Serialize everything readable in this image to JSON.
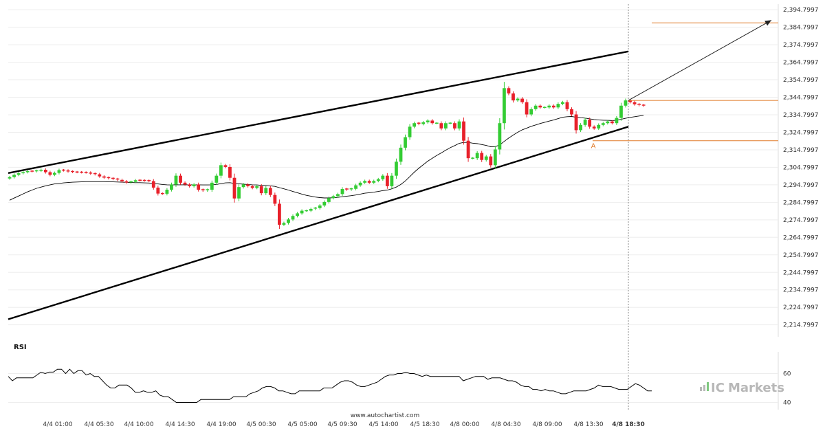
{
  "chart_data": {
    "type": "candlestick",
    "y_axis": {
      "range": [
        2208,
        2398
      ],
      "tick_labels": [
        "2,394.7997",
        "2,384.7997",
        "2,374.7997",
        "2,364.7997",
        "2,354.7997",
        "2,344.7997",
        "2,334.7997",
        "2,324.7997",
        "2,314.7997",
        "2,304.7997",
        "2,294.7997",
        "2,284.7997",
        "2,274.7997",
        "2,264.7997",
        "2,254.7997",
        "2,244.7997",
        "2,234.7997",
        "2,224.7997",
        "2,214.7997"
      ],
      "tick_values": [
        2394.7997,
        2384.7997,
        2374.7997,
        2364.7997,
        2354.7997,
        2344.7997,
        2334.7997,
        2324.7997,
        2314.7997,
        2304.7997,
        2294.7997,
        2284.7997,
        2274.7997,
        2264.7997,
        2254.7997,
        2244.7997,
        2234.7997,
        2224.7997,
        2214.7997
      ]
    },
    "x_axis": {
      "tick_labels": [
        "4/4 01:00",
        "4/4 05:30",
        "4/4 10:00",
        "4/4 14:30",
        "4/4 19:00",
        "4/5 00:30",
        "4/5 05:00",
        "4/5 09:30",
        "4/5 14:00",
        "4/5 18:30",
        "4/8 00:00",
        "4/8 04:30",
        "4/8 09:00",
        "4/8 13:30",
        "4/8 18:30"
      ],
      "highlight": "4/8 18:30"
    },
    "colors": {
      "up": "#33cc33",
      "down": "#e8202a",
      "channel": "#000000",
      "level": "#e07a28",
      "ma": "#000000"
    },
    "close": [
      2299.2,
      2300.5,
      2301.4,
      2302.0,
      2302.6,
      2302.5,
      2302.8,
      2303.4,
      2302.0,
      2300.5,
      2301.6,
      2303.2,
      2303.0,
      2302.4,
      2302.1,
      2302.0,
      2301.9,
      2301.8,
      2301.2,
      2300.8,
      2299.6,
      2298.9,
      2298.5,
      2298.1,
      2297.6,
      2296.8,
      2296.1,
      2296.5,
      2297.4,
      2297.3,
      2297.2,
      2296.9,
      2293.2,
      2289.8,
      2289.7,
      2292.0,
      2295.0,
      2300.0,
      2296.0,
      2295.0,
      2294.0,
      2295.0,
      2292.0,
      2291.5,
      2292.0,
      2296.0,
      2300.0,
      2306.0,
      2305.0,
      2298.8,
      2287.0,
      2293.5,
      2295.0,
      2294.0,
      2293.0,
      2294.0,
      2290.0,
      2293.0,
      2289.0,
      2284.0,
      2272.0,
      2273.0,
      2275.0,
      2277.0,
      2278.5,
      2280.0,
      2280.0,
      2281.0,
      2281.5,
      2283.0,
      2285.0,
      2287.2,
      2288.3,
      2289.5,
      2292.4,
      2292.0,
      2292.5,
      2294.5,
      2296.0,
      2297.0,
      2296.0,
      2297.0,
      2298.0,
      2300.0,
      2294.0,
      2300.0,
      2308.0,
      2316.0,
      2322.0,
      2328.0,
      2330.0,
      2329.5,
      2330.5,
      2331.5,
      2330.0,
      2330.0,
      2327.0,
      2330.0,
      2330.0,
      2327.0,
      2331.0,
      2320.0,
      2310.0,
      2310.0,
      2313.0,
      2309.0,
      2311.0,
      2306.0,
      2315.0,
      2330.0,
      2350.0,
      2347.0,
      2343.0,
      2344.0,
      2342.0,
      2335.0,
      2338.0,
      2340.0,
      2339.0,
      2339.0,
      2340.0,
      2339.0,
      2341.0,
      2342.0,
      2338.0,
      2335.0,
      2326.0,
      2329.0,
      2332.0,
      2328.0,
      2327.0,
      2329.0,
      2330.0,
      2331.0,
      2330.0,
      2333.0,
      2340.0,
      2343.0,
      2342.0,
      2340.8,
      2340.3,
      2340.0
    ],
    "moving_average": [
      2286,
      2287.2,
      2288.4,
      2289.6,
      2290.8,
      2291.8,
      2292.8,
      2293.5,
      2294.2,
      2294.8,
      2295.3,
      2295.6,
      2295.9,
      2296.1,
      2296.3,
      2296.4,
      2296.5,
      2296.6,
      2296.6,
      2296.6,
      2296.6,
      2296.6,
      2296.5,
      2296.5,
      2296.4,
      2296.3,
      2296.2,
      2296.1,
      2296.0,
      2296.0,
      2295.9,
      2295.8,
      2295.6,
      2295.3,
      2295.0,
      2294.8,
      2294.7,
      2294.8,
      2294.8,
      2294.8,
      2294.8,
      2294.8,
      2294.8,
      2294.7,
      2294.7,
      2294.8,
      2295.0,
      2295.5,
      2295.9,
      2296.0,
      2295.6,
      2295.4,
      2295.2,
      2295.0,
      2294.8,
      2294.7,
      2294.5,
      2294.4,
      2294.2,
      2293.9,
      2293.2,
      2292.5,
      2291.8,
      2291.0,
      2290.3,
      2289.5,
      2288.8,
      2288.3,
      2287.8,
      2287.5,
      2287.3,
      2287.3,
      2287.4,
      2287.6,
      2288.0,
      2288.3,
      2288.6,
      2289.0,
      2289.5,
      2290.0,
      2290.3,
      2290.6,
      2291.0,
      2291.5,
      2291.8,
      2292.5,
      2293.5,
      2295.0,
      2297.0,
      2299.5,
      2302.0,
      2304.2,
      2306.3,
      2308.3,
      2310.0,
      2311.6,
      2313.0,
      2314.6,
      2316.0,
      2317.2,
      2318.5,
      2319.0,
      2319.0,
      2318.6,
      2318.3,
      2317.8,
      2317.3,
      2316.5,
      2316.6,
      2317.6,
      2319.6,
      2321.5,
      2323.2,
      2324.8,
      2326.2,
      2327.2,
      2328.2,
      2329.0,
      2329.8,
      2330.5,
      2331.2,
      2331.8,
      2332.6,
      2333.4,
      2333.7,
      2333.8,
      2333.4,
      2333.1,
      2332.9,
      2332.5,
      2332.1,
      2331.8,
      2331.7,
      2331.6,
      2331.5,
      2331.7,
      2332.2,
      2332.8,
      2333.3,
      2333.7,
      2334.1,
      2334.5
    ],
    "channel": {
      "upper": {
        "start": 2301.5,
        "end": 2371.0
      },
      "lower": {
        "start": 2218.0,
        "end": 2328.0
      }
    },
    "levels": [
      {
        "name": "target",
        "value": 2387.3
      },
      {
        "name": "breakout",
        "value": 2343.0
      },
      {
        "name": "support",
        "value": 2320.0
      }
    ],
    "support_label": "A",
    "rsi": {
      "title": "RSI",
      "tick_labels": [
        "60",
        "40"
      ],
      "range": [
        35,
        75
      ],
      "values": [
        58,
        55,
        57,
        57,
        57,
        57,
        57,
        59,
        61,
        60,
        61,
        61,
        63,
        63,
        60,
        63,
        60,
        62,
        62,
        59,
        60,
        58,
        58,
        55,
        52,
        50,
        50,
        52,
        52,
        52,
        50,
        47,
        47,
        48,
        47,
        47,
        48,
        45,
        44,
        44,
        42,
        40,
        40,
        40,
        40,
        40,
        40,
        42,
        42,
        42,
        42,
        42,
        42,
        42,
        42,
        44,
        44,
        44,
        44,
        46,
        47,
        48,
        50,
        51,
        51,
        50,
        48,
        48,
        47,
        46,
        46,
        48,
        48,
        48,
        48,
        48,
        48,
        50,
        50,
        50,
        52,
        54,
        55,
        55,
        54,
        52,
        51,
        51,
        52,
        53,
        54,
        56,
        58,
        59,
        59,
        60,
        60,
        61,
        60,
        60,
        59,
        58,
        59,
        58,
        58,
        58,
        58,
        58,
        58,
        58,
        58,
        55,
        56,
        57,
        58,
        58,
        58,
        56,
        57,
        57,
        57,
        56,
        55,
        55,
        54,
        52,
        51,
        51,
        49,
        49,
        48,
        49,
        48,
        48,
        47,
        46,
        46,
        47,
        48,
        48,
        48,
        48,
        49,
        50,
        52,
        51,
        51,
        51,
        50,
        49,
        49,
        49,
        51,
        53,
        52,
        50,
        48,
        48
      ]
    }
  },
  "footer_url": "www.autochartist.com",
  "brand": {
    "prefix": "IC",
    "suffix": "Markets",
    "icon": "ic-bars-icon"
  }
}
